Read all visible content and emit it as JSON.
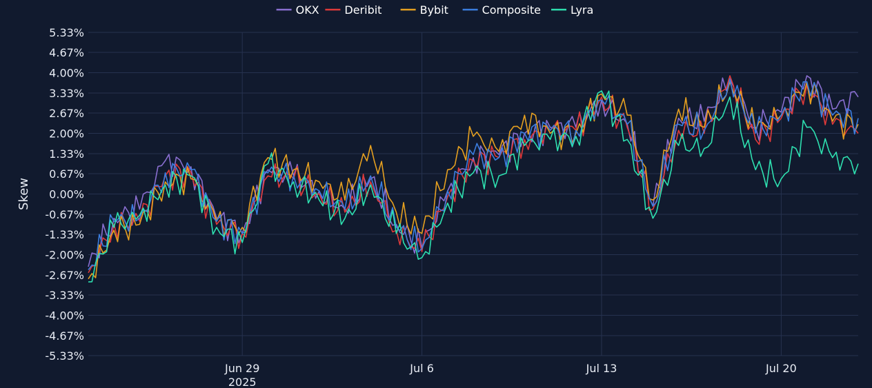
{
  "chart_data": {
    "type": "line",
    "title": "",
    "xlabel": "",
    "ylabel": "Skew",
    "legend_position": "top-center",
    "grid": true,
    "x_range": [
      "2025-06-23",
      "2025-07-23"
    ],
    "ylim": [
      -5.33,
      5.33
    ],
    "y_ticks": [
      "5.33%",
      "4.67%",
      "4.00%",
      "3.33%",
      "2.67%",
      "2.00%",
      "1.33%",
      "0.67%",
      "0.00%",
      "-0.67%",
      "-1.33%",
      "-2.00%",
      "-2.67%",
      "-3.33%",
      "-4.00%",
      "-4.67%",
      "-5.33%"
    ],
    "y_tick_values": [
      5.33,
      4.67,
      4.0,
      3.33,
      2.67,
      2.0,
      1.33,
      0.67,
      0.0,
      -0.67,
      -1.33,
      -2.0,
      -2.67,
      -3.33,
      -4.0,
      -4.67,
      -5.33
    ],
    "x_ticks": [
      {
        "date": "2025-06-29",
        "label": "Jun 29",
        "sublabel": "2025"
      },
      {
        "date": "2025-07-06",
        "label": "Jul 6",
        "sublabel": ""
      },
      {
        "date": "2025-07-13",
        "label": "Jul 13",
        "sublabel": ""
      },
      {
        "date": "2025-07-20",
        "label": "Jul 20",
        "sublabel": ""
      }
    ],
    "x": [
      "2025-06-23",
      "2025-06-24",
      "2025-06-25",
      "2025-06-26",
      "2025-06-27",
      "2025-06-28",
      "2025-06-29",
      "2025-06-30",
      "2025-07-01",
      "2025-07-02",
      "2025-07-03",
      "2025-07-04",
      "2025-07-05",
      "2025-07-06",
      "2025-07-07",
      "2025-07-08",
      "2025-07-09",
      "2025-07-10",
      "2025-07-11",
      "2025-07-12",
      "2025-07-13",
      "2025-07-14",
      "2025-07-15",
      "2025-07-16",
      "2025-07-17",
      "2025-07-18",
      "2025-07-19",
      "2025-07-20",
      "2025-07-21",
      "2025-07-22",
      "2025-07-23"
    ],
    "series": [
      {
        "name": "OKX",
        "color": "#8a6fd1",
        "values": [
          -2.4,
          -0.8,
          -0.5,
          1.1,
          0.9,
          -0.8,
          -1.3,
          0.8,
          0.6,
          0.1,
          -0.5,
          0.5,
          -1.0,
          -1.8,
          0.1,
          1.2,
          1.3,
          2.0,
          2.2,
          2.2,
          3.1,
          2.3,
          -0.4,
          2.5,
          2.4,
          3.8,
          2.2,
          2.7,
          3.9,
          2.8,
          3.2
        ]
      },
      {
        "name": "Deribit",
        "color": "#e03a3a",
        "values": [
          -2.6,
          -1.0,
          -0.9,
          0.6,
          0.7,
          -1.0,
          -1.3,
          0.6,
          0.5,
          0.0,
          -0.6,
          0.4,
          -1.2,
          -1.9,
          -0.1,
          1.1,
          1.2,
          1.8,
          2.1,
          2.1,
          3.2,
          2.2,
          -0.5,
          2.1,
          2.0,
          3.9,
          1.8,
          2.5,
          3.6,
          2.3,
          2.0
        ]
      },
      {
        "name": "Bybit",
        "color": "#e6a020",
        "values": [
          -2.8,
          -1.2,
          -1.0,
          0.4,
          0.5,
          -0.9,
          -1.1,
          1.2,
          0.8,
          0.4,
          -0.2,
          1.6,
          -0.6,
          -1.3,
          0.8,
          1.9,
          1.4,
          2.6,
          2.0,
          2.0,
          3.3,
          2.6,
          -0.2,
          2.8,
          2.2,
          3.7,
          2.1,
          2.6,
          3.7,
          2.4,
          2.3
        ]
      },
      {
        "name": "Composite",
        "color": "#3b7ee0",
        "values": [
          -2.5,
          -0.9,
          -0.8,
          0.7,
          0.8,
          -0.9,
          -1.3,
          0.7,
          0.6,
          0.1,
          -0.5,
          0.6,
          -1.1,
          -1.8,
          0.1,
          1.3,
          1.2,
          2.0,
          2.1,
          2.1,
          3.1,
          2.3,
          -0.4,
          2.3,
          2.1,
          3.8,
          2.0,
          2.6,
          3.7,
          2.6,
          2.5
        ]
      },
      {
        "name": "Lyra",
        "color": "#2ee0b0",
        "values": [
          -2.9,
          -1.1,
          -0.7,
          0.3,
          0.6,
          -1.1,
          -1.6,
          1.0,
          0.4,
          -0.2,
          -0.8,
          0.3,
          -1.3,
          -2.1,
          -0.3,
          0.7,
          0.6,
          1.6,
          1.8,
          1.9,
          3.4,
          1.8,
          -0.8,
          1.6,
          1.5,
          3.2,
          0.8,
          0.5,
          2.2,
          1.2,
          1.0
        ]
      }
    ]
  }
}
